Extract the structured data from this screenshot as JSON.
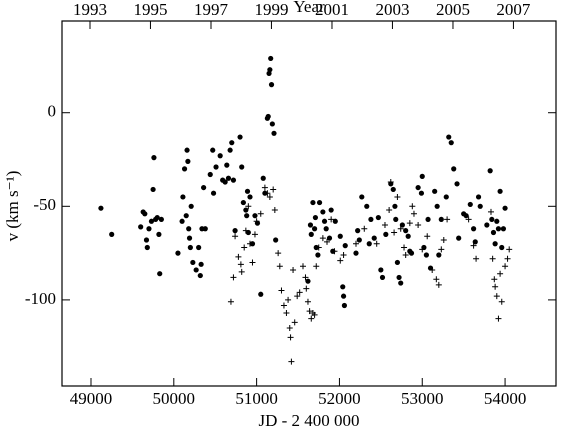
{
  "chart_data": {
    "type": "scatter",
    "x_label": "JD - 2 400 000",
    "y_label": "v (km s⁻¹)",
    "x2_label": "Year",
    "xlim": [
      48650,
      54615
    ],
    "ylim": [
      -146,
      49
    ],
    "xticks": [
      49000,
      50000,
      51000,
      52000,
      53000,
      54000
    ],
    "yticks": [
      -100,
      -50,
      0
    ],
    "x2ticks": [
      {
        "value": 48988,
        "label": "1993"
      },
      {
        "value": 49718,
        "label": "1995"
      },
      {
        "value": 50449,
        "label": "1997"
      },
      {
        "value": 51179,
        "label": "1999"
      },
      {
        "value": 51910,
        "label": "2001"
      },
      {
        "value": 52640,
        "label": "2003"
      },
      {
        "value": 53371,
        "label": "2005"
      },
      {
        "value": 54101,
        "label": "2007"
      }
    ],
    "series": [
      {
        "marker": "dot",
        "color": "#000000",
        "x": [
          49120,
          49250,
          49600,
          49630,
          49650,
          49670,
          49680,
          49700,
          49730,
          49750,
          49760,
          49780,
          49800,
          49820,
          49830,
          49850,
          50050,
          50100,
          50110,
          50130,
          50150,
          50160,
          50170,
          50180,
          50190,
          50200,
          50210,
          50230,
          50270,
          50300,
          50320,
          50330,
          50340,
          50360,
          50380,
          50440,
          50470,
          50480,
          50510,
          50560,
          50590,
          50620,
          50640,
          50660,
          50680,
          50700,
          50720,
          50740,
          50800,
          50820,
          50840,
          50870,
          50880,
          50890,
          50900,
          50920,
          50950,
          50980,
          51010,
          51050,
          51080,
          51100,
          51130,
          51140,
          51150,
          51160,
          51170,
          51180,
          51190,
          51210,
          51230,
          51620,
          51650,
          51660,
          51680,
          51700,
          51710,
          51720,
          51740,
          51760,
          51800,
          51820,
          51840,
          51880,
          51900,
          51920,
          51950,
          52010,
          52040,
          52050,
          52060,
          52070,
          52200,
          52220,
          52240,
          52270,
          52330,
          52360,
          52380,
          52420,
          52470,
          52500,
          52520,
          52560,
          52620,
          52650,
          52670,
          52680,
          52700,
          52720,
          52740,
          52760,
          52800,
          52830,
          52850,
          52870,
          52950,
          52990,
          53000,
          53020,
          53050,
          53070,
          53100,
          53150,
          53180,
          53200,
          53230,
          53290,
          53320,
          53350,
          53380,
          53420,
          53440,
          53500,
          53530,
          53580,
          53620,
          53640,
          53680,
          53700,
          53780,
          53820,
          53840,
          53860,
          53880,
          53900,
          53920,
          53940,
          53960,
          53980,
          54000
        ],
        "values": [
          -51,
          -65,
          -61,
          -53,
          -54,
          -68,
          -72,
          -62,
          -58,
          -41,
          -24,
          -57,
          -56,
          -65,
          -86,
          -57,
          -75,
          -58,
          -45,
          -30,
          -55,
          -20,
          -26,
          -62,
          -67,
          -72,
          -50,
          -80,
          -84,
          -72,
          -87,
          -81,
          -62,
          -40,
          -62,
          -33,
          -20,
          -43,
          -29,
          -23,
          -36,
          -37,
          -28,
          -35,
          -20,
          -16,
          -36,
          -63,
          -13,
          -29,
          -48,
          -52,
          -55,
          -42,
          -64,
          -45,
          -70,
          -55,
          -59,
          -97,
          -35,
          -43,
          -3,
          -2,
          21,
          23,
          29,
          15,
          -6,
          -11,
          -68,
          -90,
          -60,
          -65,
          -48,
          -62,
          -56,
          -72,
          -76,
          -48,
          -53,
          -58,
          -62,
          -67,
          -52,
          -74,
          -58,
          -66,
          -93,
          -98,
          -103,
          -71,
          -75,
          -63,
          -68,
          -45,
          -50,
          -70,
          -57,
          -67,
          -56,
          -84,
          -88,
          -65,
          -38,
          -41,
          -50,
          -57,
          -80,
          -88,
          -91,
          -60,
          -63,
          -66,
          -74,
          -75,
          -40,
          -43,
          -34,
          -72,
          -76,
          -57,
          -83,
          -42,
          -50,
          -76,
          -57,
          -45,
          -13,
          -16,
          -30,
          -38,
          -67,
          -54,
          -55,
          -49,
          -62,
          -69,
          -45,
          -50,
          -60,
          -31,
          -57,
          -64,
          -70,
          -58,
          -62,
          -42,
          -72,
          -62,
          -51
        ]
      },
      {
        "marker": "plus",
        "color": "#000000",
        "x": [
          50690,
          50720,
          50740,
          50780,
          50810,
          50820,
          50850,
          50870,
          50900,
          50920,
          50950,
          50980,
          51000,
          51050,
          51100,
          51130,
          51160,
          51200,
          51220,
          51260,
          51280,
          51300,
          51330,
          51360,
          51380,
          51400,
          51410,
          51420,
          51440,
          51460,
          51490,
          51520,
          51560,
          51590,
          51600,
          51620,
          51640,
          51660,
          51680,
          51700,
          51720,
          51750,
          51800,
          51850,
          51900,
          51940,
          52010,
          52050,
          52200,
          52300,
          52450,
          52550,
          52600,
          52620,
          52660,
          52700,
          52740,
          52780,
          52800,
          52850,
          52880,
          52900,
          52950,
          53000,
          53060,
          53120,
          53170,
          53200,
          53230,
          53260,
          53300,
          53560,
          53620,
          53650,
          53830,
          53850,
          53870,
          53880,
          53900,
          53920,
          53940,
          53960,
          54000,
          54030,
          54050
        ],
        "values": [
          -101,
          -88,
          -66,
          -77,
          -81,
          -85,
          -72,
          -63,
          -50,
          -70,
          -80,
          -65,
          -58,
          -54,
          -40,
          -43,
          -45,
          -41,
          -52,
          -75,
          -82,
          -95,
          -103,
          -107,
          -100,
          -115,
          -120,
          -133,
          -84,
          -112,
          -98,
          -96,
          -82,
          -88,
          -94,
          -101,
          -106,
          -110,
          -107,
          -108,
          -82,
          -72,
          -67,
          -69,
          -57,
          -74,
          -79,
          -76,
          -70,
          -62,
          -70,
          -60,
          -52,
          -37,
          -64,
          -45,
          -62,
          -72,
          -76,
          -59,
          -50,
          -54,
          -60,
          -73,
          -66,
          -84,
          -89,
          -92,
          -73,
          -68,
          -57,
          -57,
          -71,
          -78,
          -53,
          -78,
          -89,
          -93,
          -98,
          -110,
          -86,
          -101,
          -82,
          -78,
          -73
        ]
      }
    ]
  }
}
